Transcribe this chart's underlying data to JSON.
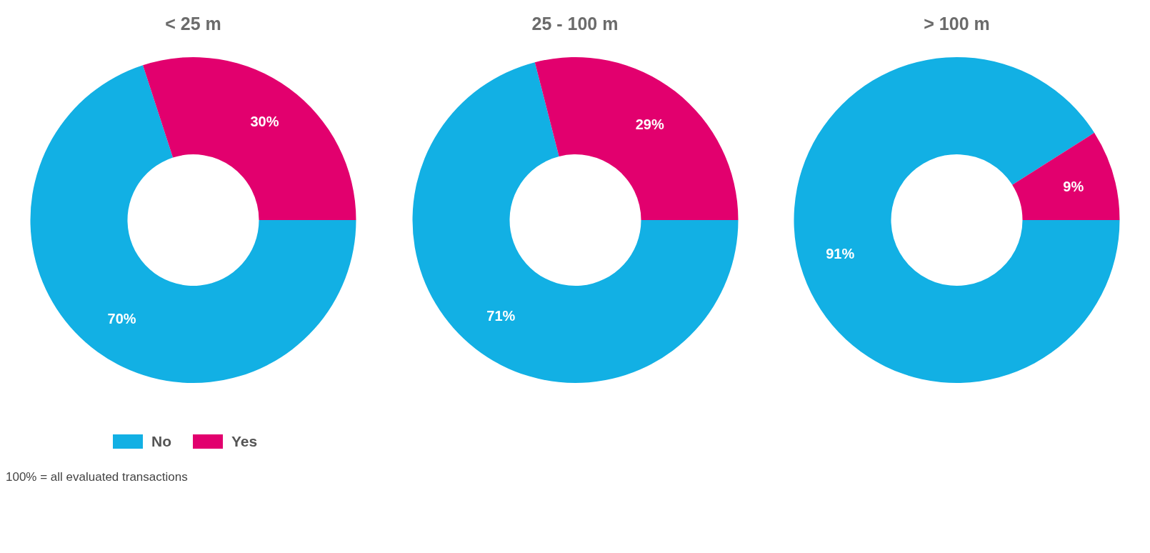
{
  "chart_data": [
    {
      "type": "donut",
      "title": "< 25 m",
      "categories": [
        "No",
        "Yes"
      ],
      "values": [
        70,
        30
      ],
      "value_labels": [
        "70%",
        "30%"
      ],
      "colors": [
        "#12b0e4",
        "#e2006e"
      ],
      "legend": "bottom",
      "annotations": [
        "100% = all evaluated transactions"
      ]
    },
    {
      "type": "donut",
      "title": "25 - 100 m",
      "categories": [
        null,
        null
      ],
      "values": [
        71,
        29
      ],
      "value_labels": [
        "71%",
        "29%"
      ],
      "colors": [
        "#12b0e4",
        "#e2006e"
      ]
    },
    {
      "type": "donut",
      "title": "> 100 m",
      "categories": [
        null,
        null
      ],
      "values": [
        91,
        9
      ],
      "value_labels": [
        "91%",
        "9%"
      ],
      "colors": [
        "#12b0e4",
        "#e2006e"
      ]
    }
  ]
}
